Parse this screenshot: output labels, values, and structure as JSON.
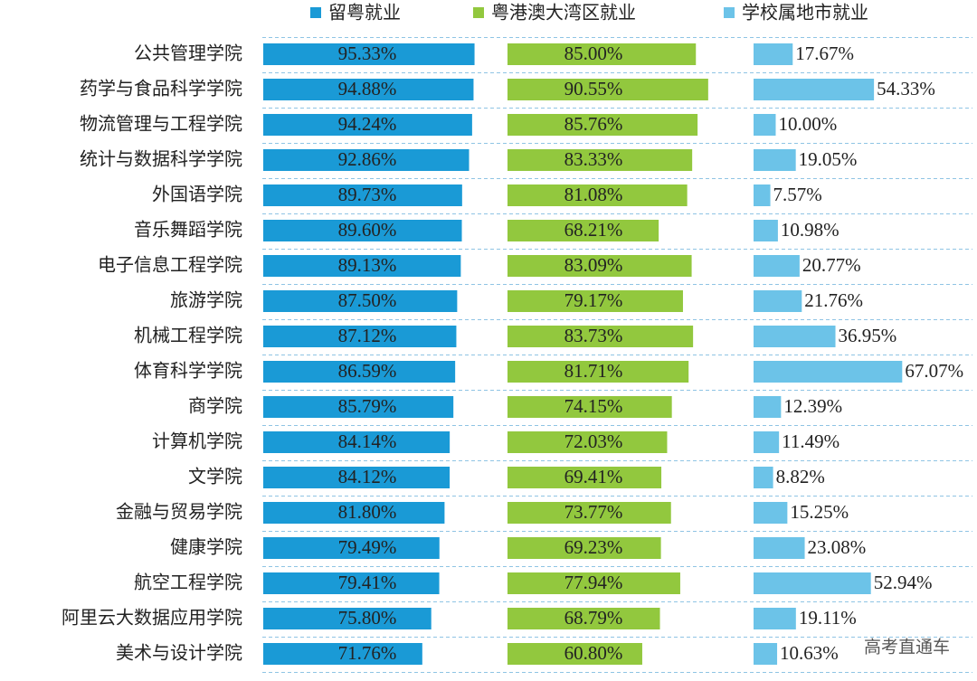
{
  "chart_data": {
    "type": "bar",
    "orientation": "horizontal",
    "categories": [
      "公共管理学院",
      "药学与食品科学学院",
      "物流管理与工程学院",
      "统计与数据科学学院",
      "外国语学院",
      "音乐舞蹈学院",
      "电子信息工程学院",
      "旅游学院",
      "机械工程学院",
      "体育科学学院",
      "商学院",
      "计算机学院",
      "文学院",
      "金融与贸易学院",
      "健康学院",
      "航空工程学院",
      "阿里云大数据应用学院",
      "美术与设计学院"
    ],
    "series": [
      {
        "name": "留粤就业",
        "color": "#1a9ad6",
        "values": [
          95.33,
          94.88,
          94.24,
          92.86,
          89.73,
          89.6,
          89.13,
          87.5,
          87.12,
          86.59,
          85.79,
          84.14,
          84.12,
          81.8,
          79.49,
          79.41,
          75.8,
          71.76
        ],
        "value_labels": [
          "95.33%",
          "94.88%",
          "94.24%",
          "92.86%",
          "89.73%",
          "89.60%",
          "89.13%",
          "87.50%",
          "87.12%",
          "86.59%",
          "85.79%",
          "84.14%",
          "84.12%",
          "81.80%",
          "79.49%",
          "79.41%",
          "75.80%",
          "71.76%"
        ]
      },
      {
        "name": "粤港澳大湾区就业",
        "color": "#92c83e",
        "values": [
          85.0,
          90.55,
          85.76,
          83.33,
          81.08,
          68.21,
          83.09,
          79.17,
          83.73,
          81.71,
          74.15,
          72.03,
          69.41,
          73.77,
          69.23,
          77.94,
          68.79,
          60.8
        ],
        "value_labels": [
          "85.00%",
          "90.55%",
          "85.76%",
          "83.33%",
          "81.08%",
          "68.21%",
          "83.09%",
          "79.17%",
          "83.73%",
          "81.71%",
          "74.15%",
          "72.03%",
          "69.41%",
          "73.77%",
          "69.23%",
          "77.94%",
          "68.79%",
          "60.80%"
        ]
      },
      {
        "name": "学校属地市就业",
        "color": "#6cc3e8",
        "values": [
          17.67,
          54.33,
          10.0,
          19.05,
          7.57,
          10.98,
          20.77,
          21.76,
          36.95,
          67.07,
          12.39,
          11.49,
          8.82,
          15.25,
          23.08,
          52.94,
          19.11,
          10.63
        ],
        "value_labels": [
          "17.67%",
          "54.33%",
          "10.00%",
          "19.05%",
          "7.57%",
          "10.98%",
          "20.77%",
          "21.76%",
          "36.95%",
          "67.07%",
          "12.39%",
          "11.49%",
          "8.82%",
          "15.25%",
          "23.08%",
          "52.94%",
          "19.11%",
          "10.63%"
        ]
      }
    ],
    "xlim": [
      0,
      100
    ],
    "legend": "top",
    "watermark": "高考直通车"
  }
}
